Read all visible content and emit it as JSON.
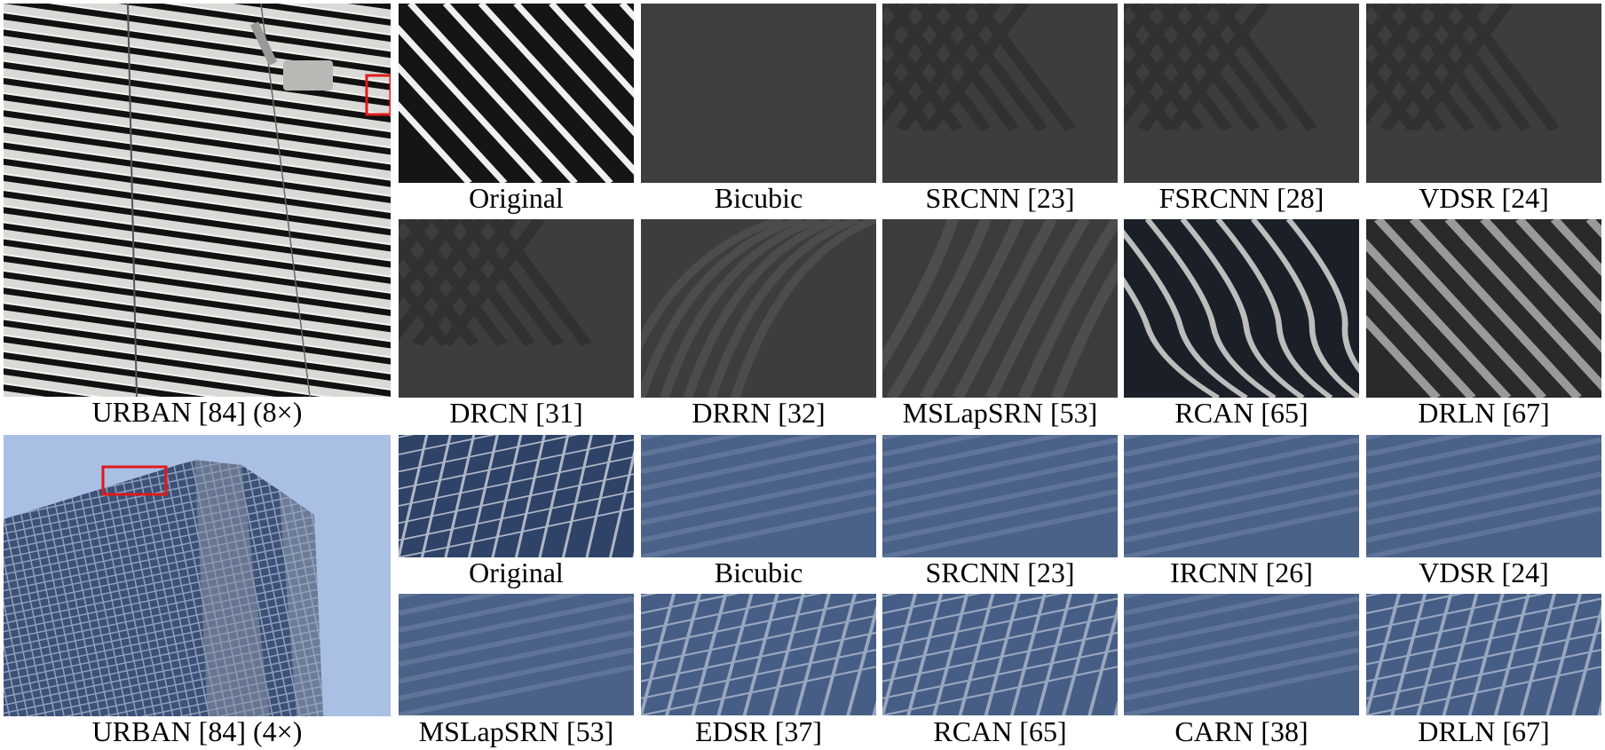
{
  "figure": {
    "scene1": {
      "caption": "URBAN [84] (8×)",
      "crops": [
        {
          "label": "Original",
          "key": "orig-stripes"
        },
        {
          "label": "Bicubic",
          "key": "flat"
        },
        {
          "label": "SRCNN [23]",
          "key": "grid-blur"
        },
        {
          "label": "FSRCNN [28]",
          "key": "grid-blur"
        },
        {
          "label": "VDSR [24]",
          "key": "grid-blur"
        },
        {
          "label": "DRCN [31]",
          "key": "grid-blur"
        },
        {
          "label": "DRRN [32]",
          "key": "arc-blur"
        },
        {
          "label": "MSLapSRN [53]",
          "key": "curve-blur"
        },
        {
          "label": "RCAN [65]",
          "key": "wavy"
        },
        {
          "label": "DRLN [67]",
          "key": "stripes-soft"
        }
      ]
    },
    "scene2": {
      "caption": "URBAN [84] (4×)",
      "crops": [
        {
          "label": "Original",
          "key": "blue-grid-sharp"
        },
        {
          "label": "Bicubic",
          "key": "blue-blur"
        },
        {
          "label": "SRCNN [23]",
          "key": "blue-blur"
        },
        {
          "label": "IRCNN [26]",
          "key": "blue-blur"
        },
        {
          "label": "VDSR [24]",
          "key": "blue-blur"
        },
        {
          "label": "MSLapSRN [53]",
          "key": "blue-blur"
        },
        {
          "label": "EDSR [37]",
          "key": "blue-lines"
        },
        {
          "label": "RCAN [65]",
          "key": "blue-lines"
        },
        {
          "label": "CARN [38]",
          "key": "blue-blur"
        },
        {
          "label": "DRLN [67]",
          "key": "blue-lines"
        }
      ]
    },
    "colors": {
      "highlight_box": "#e0191b",
      "gray_bg": "#3b3b3b",
      "blue_bg": "#445d88",
      "sky": "#a9bfe3"
    }
  }
}
